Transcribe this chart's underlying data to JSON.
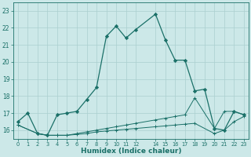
{
  "xlabel": "Humidex (Indice chaleur)",
  "bg_color": "#cce8e8",
  "grid_color": "#aacfcf",
  "line_color": "#1a7068",
  "xlim_min": -0.5,
  "xlim_max": 23.5,
  "ylim_min": 15.5,
  "ylim_max": 23.5,
  "yticks": [
    16,
    17,
    18,
    19,
    20,
    21,
    22,
    23
  ],
  "xtick_positions": [
    0,
    1,
    2,
    3,
    4,
    5,
    6,
    7,
    8,
    9,
    10,
    11,
    12,
    14,
    15,
    16,
    17,
    18,
    19,
    20,
    21,
    22,
    23
  ],
  "xtick_labels": [
    "0",
    "1",
    "2",
    "3",
    "4",
    "5",
    "6",
    "7",
    "8",
    "9",
    "10",
    "11",
    "12",
    "14",
    "15",
    "16",
    "17",
    "18",
    "19",
    "20",
    "21",
    "22",
    "23"
  ],
  "series1_x": [
    0,
    1,
    2,
    3,
    4,
    5,
    6,
    7,
    8,
    9,
    10,
    11,
    12,
    14,
    15,
    16,
    17,
    18,
    19,
    20,
    21,
    22,
    23
  ],
  "series1_y": [
    16.5,
    17.0,
    15.8,
    15.7,
    16.9,
    17.0,
    17.1,
    17.8,
    18.5,
    21.5,
    22.1,
    21.4,
    21.9,
    22.8,
    21.3,
    20.1,
    20.1,
    18.3,
    18.4,
    16.1,
    16.0,
    17.1,
    16.9
  ],
  "series2_x": [
    0,
    2,
    3,
    4,
    5,
    6,
    7,
    8,
    9,
    10,
    11,
    12,
    14,
    15,
    16,
    17,
    18,
    20,
    21,
    22,
    23
  ],
  "series2_y": [
    16.3,
    15.8,
    15.7,
    15.7,
    15.7,
    15.8,
    15.9,
    16.0,
    16.1,
    16.2,
    16.3,
    16.4,
    16.6,
    16.7,
    16.8,
    16.9,
    17.9,
    16.1,
    17.1,
    17.1,
    16.9
  ],
  "series3_x": [
    0,
    2,
    3,
    4,
    5,
    6,
    7,
    8,
    9,
    10,
    11,
    12,
    14,
    15,
    16,
    17,
    18,
    20,
    21,
    22,
    23
  ],
  "series3_y": [
    16.3,
    15.8,
    15.7,
    15.7,
    15.7,
    15.75,
    15.8,
    15.9,
    15.95,
    16.0,
    16.05,
    16.1,
    16.2,
    16.25,
    16.3,
    16.35,
    16.4,
    15.8,
    16.0,
    16.5,
    16.8
  ]
}
